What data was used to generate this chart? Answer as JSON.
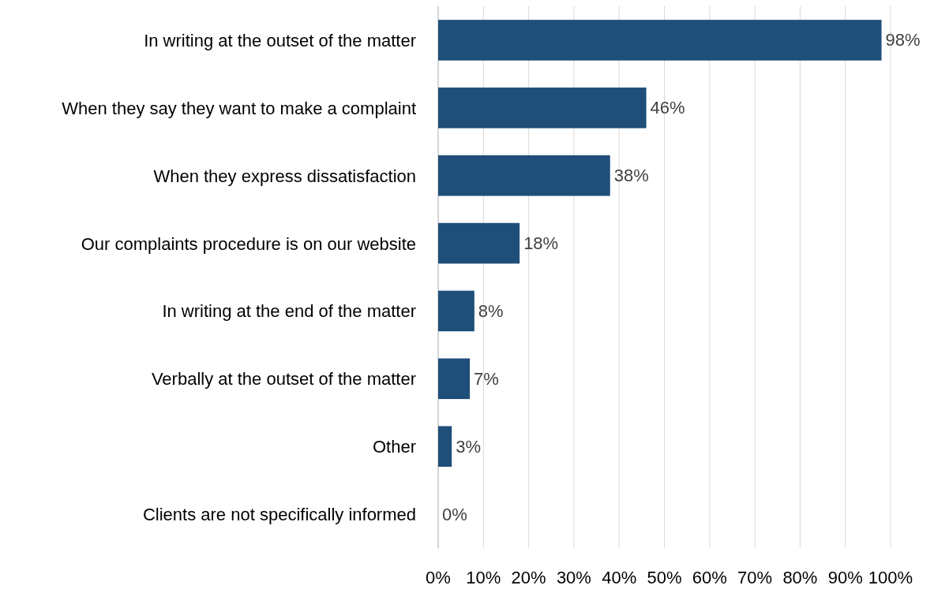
{
  "chart_data": {
    "type": "bar",
    "orientation": "horizontal",
    "categories": [
      "In writing at the outset of the matter",
      "When they say they want to make a complaint",
      "When they express dissatisfaction",
      "Our complaints procedure is on our website",
      "In writing at the end of the matter",
      "Verbally at the outset of the matter",
      "Other",
      "Clients are not specifically informed"
    ],
    "values": [
      98,
      46,
      38,
      18,
      8,
      7,
      3,
      0
    ],
    "color": "#1f4e79",
    "xlim": [
      0,
      100
    ],
    "xticks": [
      {
        "value": 0,
        "label": "0%"
      },
      {
        "value": 10,
        "label": "10%"
      },
      {
        "value": 20,
        "label": "20%"
      },
      {
        "value": 30,
        "label": "30%"
      },
      {
        "value": 40,
        "label": "40%"
      },
      {
        "value": 50,
        "label": "50%"
      },
      {
        "value": 60,
        "label": "60%"
      },
      {
        "value": 70,
        "label": "70%"
      },
      {
        "value": 80,
        "label": "80%"
      },
      {
        "value": 90,
        "label": "90%"
      },
      {
        "value": 100,
        "label": "100%"
      }
    ],
    "grid": "x",
    "value_labels": [
      "98%",
      "46%",
      "38%",
      "18%",
      "8%",
      "7%",
      "3%",
      "0%"
    ]
  }
}
